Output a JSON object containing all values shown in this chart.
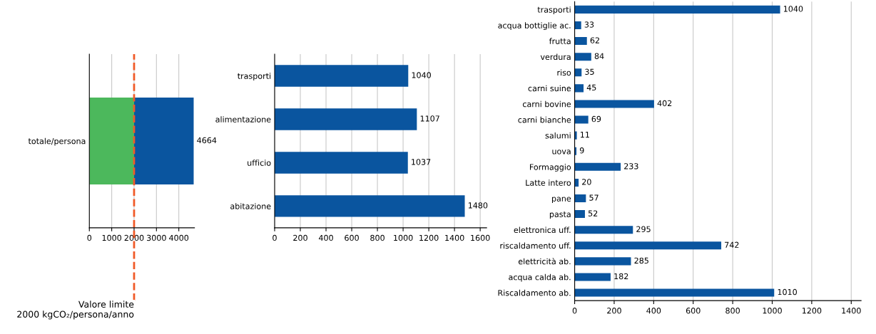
{
  "chart_data": [
    {
      "type": "bar",
      "orientation": "horizontal",
      "stacked": true,
      "categories": [
        "totale/persona"
      ],
      "series": [
        {
          "color": "#4cb85c",
          "values": [
            2000
          ]
        },
        {
          "color": "#0a559f",
          "values": [
            2664
          ]
        }
      ],
      "totals": [
        "4664"
      ],
      "xlim": [
        0,
        4700
      ],
      "xticks": [
        0,
        1000,
        2000,
        3000,
        4000
      ],
      "grid": "x",
      "ref_lines": [
        {
          "axis": "x",
          "value": 2000,
          "label": "Valore limite\n2000 kgCO₂/persona/anno",
          "color": "#f05a28",
          "line_style": "dashed"
        }
      ]
    },
    {
      "type": "bar",
      "orientation": "horizontal",
      "categories": [
        "trasporti",
        "alimentazione",
        "ufficio",
        "abitazione"
      ],
      "values": [
        1040,
        1107,
        1037,
        1480
      ],
      "color": "#0a559f",
      "data_labels": true,
      "xlim": [
        0,
        1650
      ],
      "xticks": [
        0,
        200,
        400,
        600,
        800,
        1000,
        1200,
        1400,
        1600
      ],
      "grid": "x"
    },
    {
      "type": "bar",
      "orientation": "horizontal",
      "categories": [
        "trasporti",
        "acqua bottiglie ac.",
        "frutta",
        "verdura",
        "riso",
        "carni suine",
        "carni bovine",
        "carni bianche",
        "salumi",
        "uova",
        "Formaggio",
        "Latte intero",
        "pane",
        "pasta",
        "elettronica uff.",
        "riscaldamento uff.",
        "elettricità ab.",
        "acqua calda ab.",
        "Riscaldamento ab."
      ],
      "values": [
        1040,
        33,
        62,
        84,
        35,
        45,
        402,
        69,
        11,
        9,
        233,
        20,
        57,
        52,
        295,
        742,
        285,
        182,
        1010
      ],
      "color": "#0a559f",
      "data_labels": true,
      "xlim": [
        0,
        1450
      ],
      "xticks": [
        0,
        200,
        400,
        600,
        800,
        1000,
        1200,
        1400
      ],
      "grid": "x"
    }
  ]
}
